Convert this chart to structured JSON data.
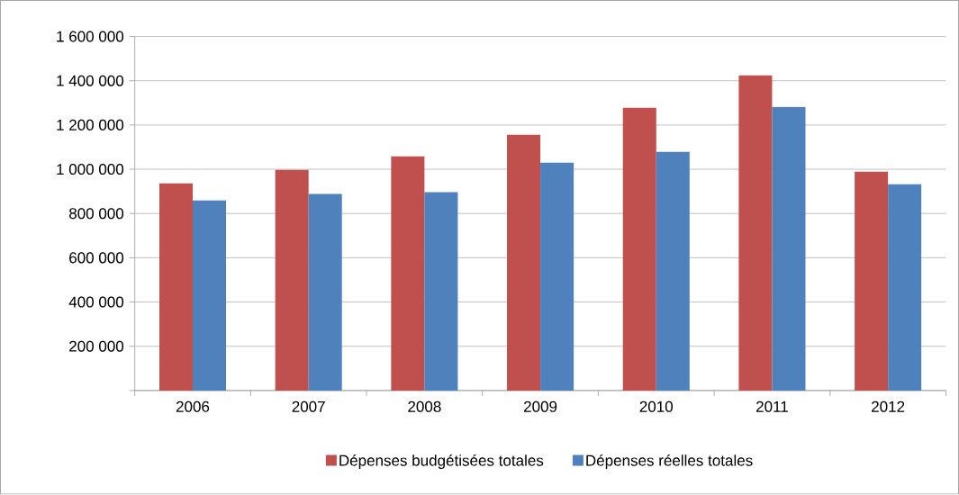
{
  "chart_data": {
    "type": "bar",
    "categories": [
      "2006",
      "2007",
      "2008",
      "2009",
      "2010",
      "2011",
      "2012"
    ],
    "series": [
      {
        "name": "Dépenses budgétisées totales",
        "color": "#c0504d",
        "values": [
          936000,
          997000,
          1058000,
          1156000,
          1278000,
          1425000,
          989000
        ]
      },
      {
        "name": "Dépenses réelles totales",
        "color": "#4f81bd",
        "values": [
          859000,
          888000,
          896000,
          1030000,
          1079000,
          1282000,
          932000
        ]
      }
    ],
    "ylim": [
      0,
      1600000
    ],
    "yticks": [
      {
        "value": 0,
        "label": null
      },
      {
        "value": 200000,
        "label": "200 000"
      },
      {
        "value": 400000,
        "label": "400 000"
      },
      {
        "value": 600000,
        "label": "600 000"
      },
      {
        "value": 800000,
        "label": "800 000"
      },
      {
        "value": 1000000,
        "label": "1 000 000"
      },
      {
        "value": 1200000,
        "label": "1 200 000"
      },
      {
        "value": 1400000,
        "label": "1 400 000"
      },
      {
        "value": 1600000,
        "label": "1 600 000"
      }
    ],
    "grid": "y",
    "legend": "bottom"
  }
}
